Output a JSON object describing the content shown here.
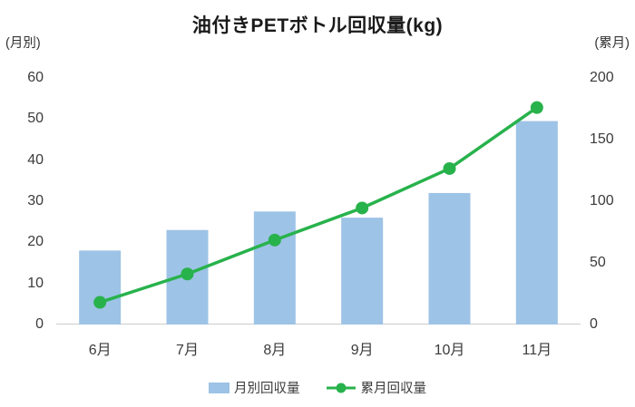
{
  "title": "油付きPETボトル回収量(kg)",
  "left_axis_label": "(月別)",
  "right_axis_label": "(累月)",
  "legend": [
    {
      "label": "月別回収量",
      "type": "bar",
      "color": "#9DC3E6"
    },
    {
      "label": "累月回収量",
      "type": "line",
      "color": "#28B24C"
    }
  ],
  "chart_data": {
    "type": "bar+line",
    "title": "油付きPETボトル回収量(kg)",
    "categories": [
      "6月",
      "7月",
      "8月",
      "9月",
      "10月",
      "11月"
    ],
    "series": [
      {
        "name": "月別回収量",
        "type": "bar",
        "axis": "left",
        "color": "#9DC3E6",
        "values": [
          18,
          23,
          27.5,
          26,
          32,
          49.5
        ]
      },
      {
        "name": "累月回収量",
        "type": "line",
        "axis": "right",
        "color": "#28B24C",
        "values": [
          18,
          41,
          68.5,
          94.5,
          126.5,
          176
        ]
      }
    ],
    "left_axis": {
      "label": "(月別)",
      "range": [
        0,
        60
      ],
      "ticks": [
        0,
        10,
        20,
        30,
        40,
        50,
        60
      ]
    },
    "right_axis": {
      "label": "(累月)",
      "range": [
        0,
        200
      ],
      "ticks": [
        0,
        50,
        100,
        150,
        200
      ]
    },
    "grid": false,
    "legend_position": "bottom"
  }
}
